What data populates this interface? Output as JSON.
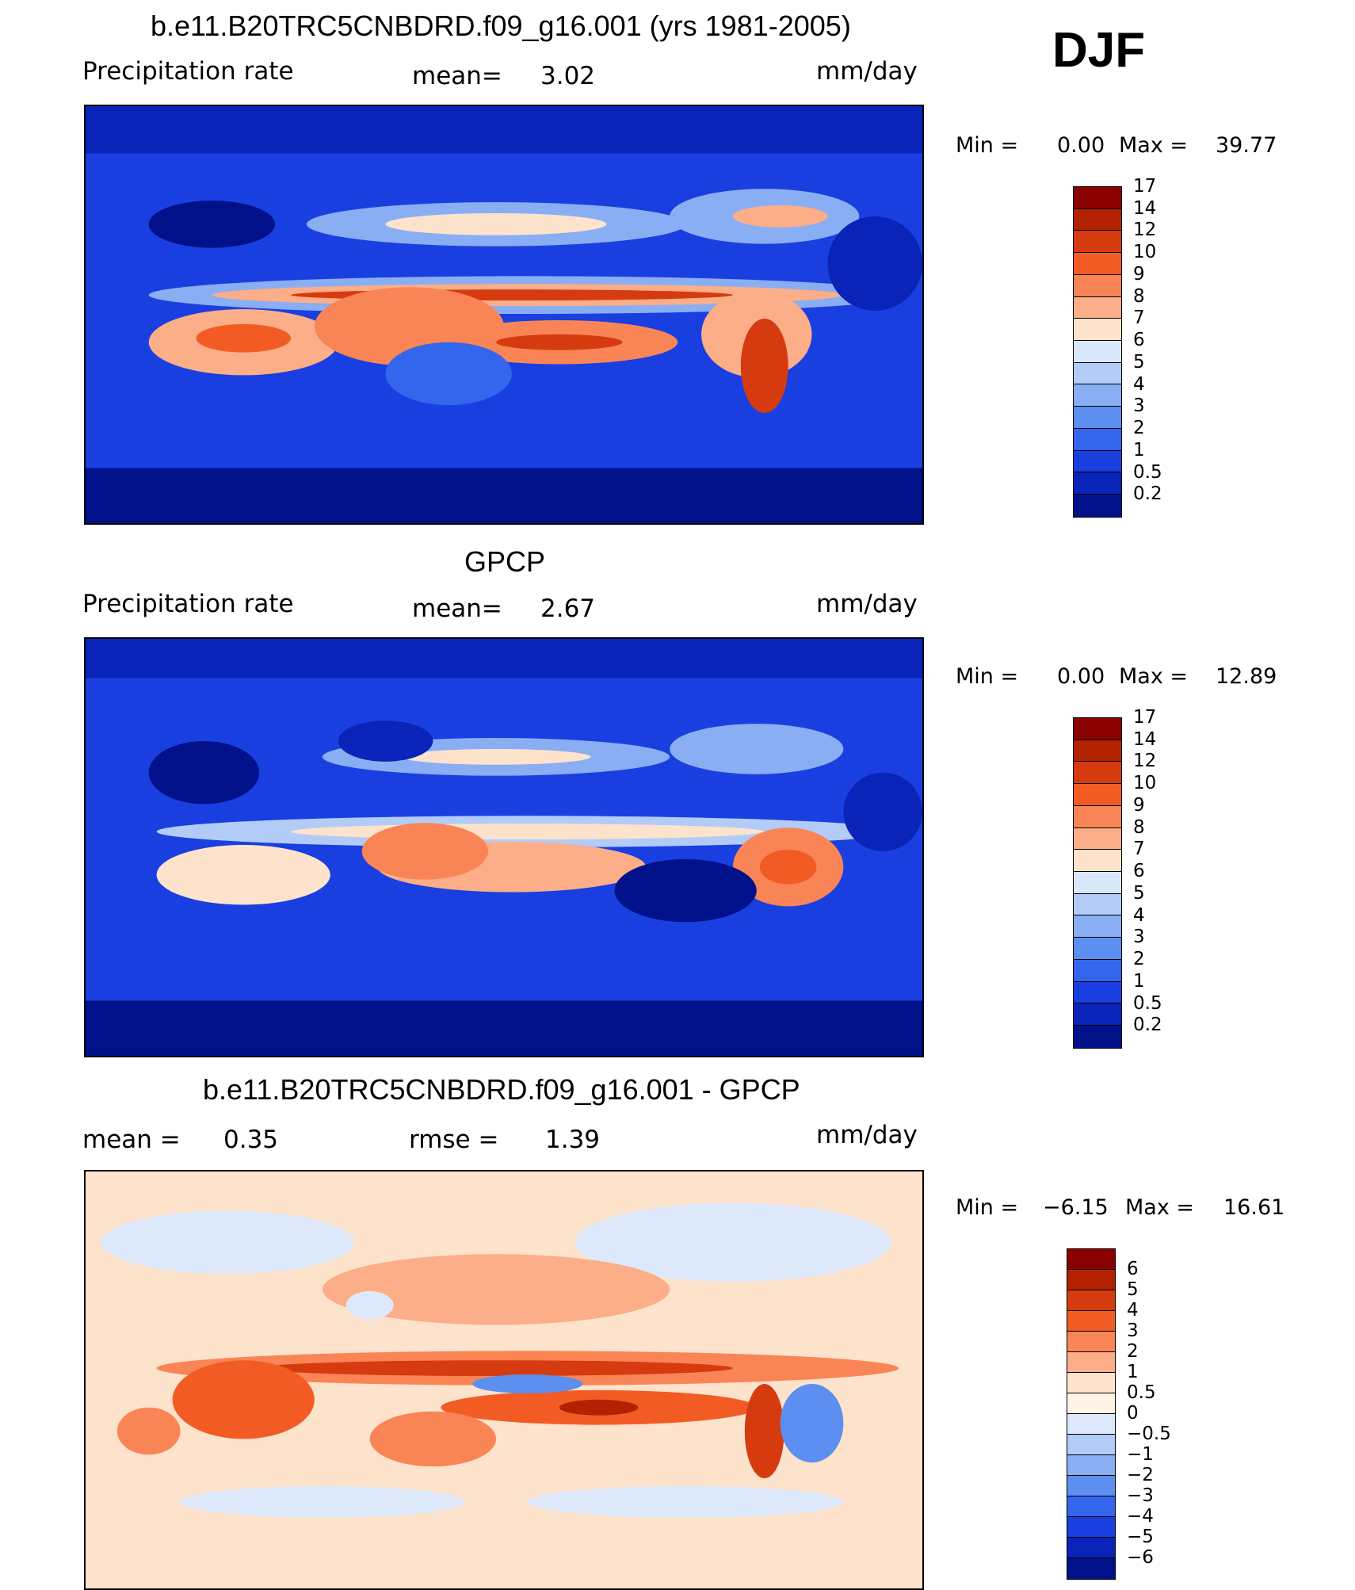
{
  "season": "DJF",
  "colors": {
    "blue_scale": [
      "#8b0000",
      "#b22200",
      "#d63a0f",
      "#f25c24",
      "#f98556",
      "#fbae88",
      "#fde3cc",
      "#d9e8fa",
      "#b2ccf7",
      "#8aaef3",
      "#5c8ff0",
      "#3366ec",
      "#1a3fe0",
      "#0a23b8",
      "#00118a"
    ],
    "diff_scale": [
      "#8b0000",
      "#b22200",
      "#d63a0f",
      "#f25c24",
      "#f98556",
      "#fbae88",
      "#fde3cc",
      "#fff3e6",
      "#dde9fb",
      "#b2ccf7",
      "#8aaef3",
      "#5c8ff0",
      "#3366ec",
      "#1a3fe0",
      "#0a23b8",
      "#00118a"
    ]
  },
  "panels": [
    {
      "title": "b.e11.B20TRC5CNBDRD.f09_g16.001 (yrs 1981-2005)",
      "left_label": "Precipitation rate",
      "mid_label": "mean=",
      "mid_value": "3.02",
      "right_label": "mm/day",
      "min_label": "Min =",
      "min_value": "0.00",
      "max_label": "Max =",
      "max_value": "39.77",
      "levels": [
        "17",
        "14",
        "12",
        "10",
        "9",
        "8",
        "7",
        "6",
        "5",
        "4",
        "3",
        "2",
        "1",
        "0.5",
        "0.2"
      ]
    },
    {
      "title": "GPCP",
      "left_label": "Precipitation rate",
      "mid_label": "mean=",
      "mid_value": "2.67",
      "right_label": "mm/day",
      "min_label": "Min =",
      "min_value": "0.00",
      "max_label": "Max =",
      "max_value": "12.89",
      "levels": [
        "17",
        "14",
        "12",
        "10",
        "9",
        "8",
        "7",
        "6",
        "5",
        "4",
        "3",
        "2",
        "1",
        "0.5",
        "0.2"
      ]
    },
    {
      "title": "b.e11.B20TRC5CNBDRD.f09_g16.001 - GPCP",
      "left_label": "mean =",
      "left_value": "0.35",
      "mid_label": "rmse =",
      "mid_value": "1.39",
      "right_label": "mm/day",
      "min_label": "Min =",
      "min_value": "−6.15",
      "max_label": "Max =",
      "max_value": "16.61",
      "levels": [
        "6",
        "5",
        "4",
        "3",
        "2",
        "1",
        "0.5",
        "0",
        "−0.5",
        "−1",
        "−2",
        "−3",
        "−4",
        "−5",
        "−6"
      ]
    }
  ]
}
